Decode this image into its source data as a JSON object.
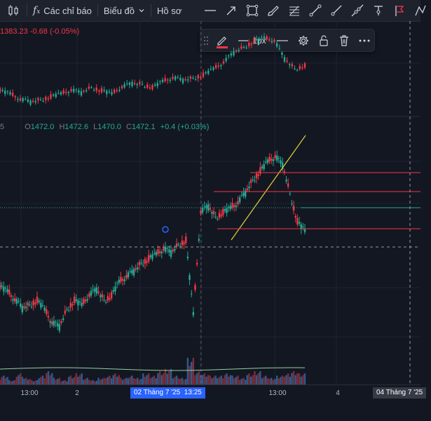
{
  "toolbar": {
    "indicators_label": "Các chỉ báo",
    "chart_label": "Biểu đồ",
    "templates_label": "Hồ sơ"
  },
  "floating_toolbar": {
    "line_width_label": "1px"
  },
  "upper_legend": {
    "text": "1383.23 -0.68 (-0.05%)"
  },
  "main_legend": {
    "o_key": "O",
    "o": "1472.0",
    "h_key": "H",
    "h": "1472.6",
    "l_key": "L",
    "l": "1470.0",
    "c_key": "C",
    "c": "1472.1",
    "change": "+0.4 (+0.03%)",
    "pane_index": "5"
  },
  "time_axis": {
    "ticks": [
      "13:00",
      "2",
      "13:00",
      "4"
    ],
    "cursor_date": "02 Tháng 7 '25",
    "cursor_time": "13:25",
    "end_label": "04 Tháng 7 '25"
  },
  "colors": {
    "up": "#22ab94",
    "down": "#f23645",
    "trend": "#e0d036",
    "level": "#f23645",
    "cursor_tag": "#2962ff",
    "panel": "#1e222d",
    "background": "#131722"
  },
  "chart_data": [
    {
      "type": "candlestick",
      "symbol_legend": "1383.23 -0.68 (-0.05%)",
      "close_series": [
        1386,
        1385,
        1383,
        1382,
        1383,
        1384,
        1385,
        1386,
        1385,
        1387,
        1386,
        1385,
        1387,
        1388,
        1388,
        1387,
        1389,
        1390,
        1389,
        1390,
        1391,
        1393,
        1395,
        1398,
        1400,
        1402,
        1403,
        1402,
        1396,
        1393,
        1394
      ],
      "trend": "upper pane, rising into top edge then dropping at right"
    },
    {
      "type": "candlestick",
      "legend": {
        "open": 1472.0,
        "high": 1472.6,
        "low": 1470.0,
        "close": 1472.1,
        "change": 0.4,
        "change_pct": 0.03
      },
      "close_series": [
        1460,
        1459,
        1457,
        1455,
        1456,
        1457,
        1455,
        1452,
        1451,
        1455,
        1457,
        1456,
        1458,
        1459,
        1457,
        1458,
        1461,
        1462,
        1463,
        1465,
        1466,
        1467,
        1468,
        1467,
        1469,
        1470,
        1454,
        1476,
        1477,
        1475,
        1476,
        1477,
        1478,
        1480,
        1483,
        1485,
        1487,
        1488,
        1486,
        1480,
        1474,
        1472
      ],
      "volume_series": [
        3,
        4,
        2,
        5,
        3,
        2,
        4,
        6,
        3,
        2,
        4,
        5,
        3,
        2,
        3,
        4,
        5,
        3,
        4,
        3,
        5,
        4,
        6,
        7,
        4,
        3,
        12,
        6,
        5,
        4,
        4,
        5,
        4,
        3,
        5,
        6,
        4,
        3,
        4,
        5,
        6,
        5
      ],
      "drawings": [
        "trendline",
        "horizontal_level",
        "horizontal_level",
        "horizontal_level",
        "price_line"
      ]
    }
  ]
}
